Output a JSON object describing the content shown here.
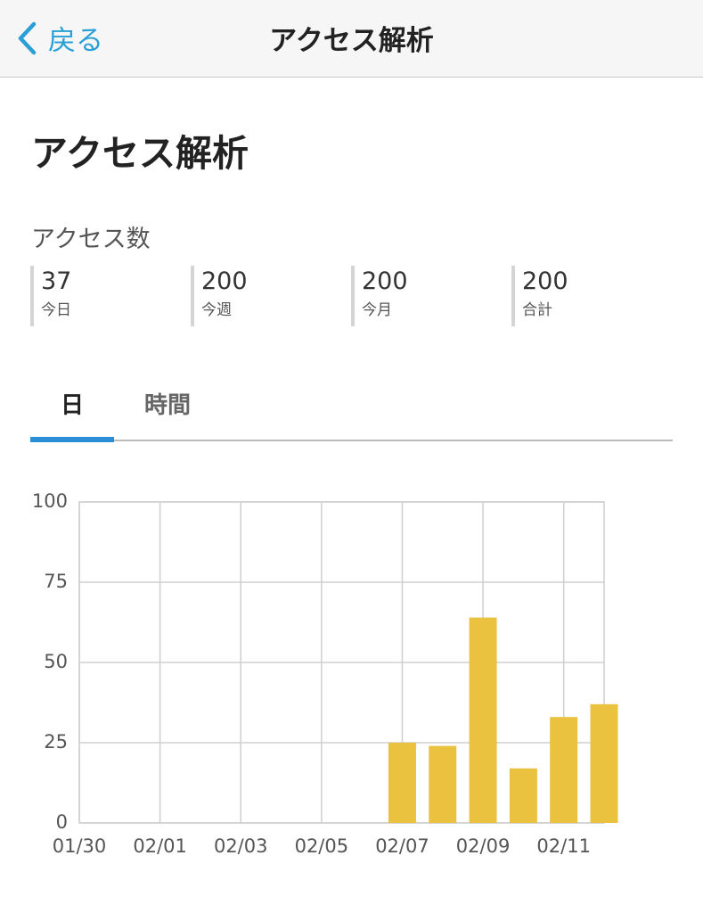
{
  "nav": {
    "back": "戻る",
    "title": "アクセス解析"
  },
  "page_title": "アクセス解析",
  "stats": {
    "heading": "アクセス数",
    "items": [
      {
        "value": "37",
        "label": "今日"
      },
      {
        "value": "200",
        "label": "今週"
      },
      {
        "value": "200",
        "label": "今月"
      },
      {
        "value": "200",
        "label": "合計"
      }
    ]
  },
  "tabs": [
    "日",
    "時間"
  ],
  "chart_data": {
    "type": "bar",
    "categories": [
      "01/30",
      null,
      "02/01",
      null,
      "02/03",
      null,
      "02/05",
      null,
      "02/07",
      null,
      "02/09",
      null,
      "02/11",
      null
    ],
    "values": [
      0,
      0,
      0,
      0,
      0,
      0,
      0,
      0,
      25,
      24,
      64,
      17,
      33,
      37
    ],
    "color": "#ebc140",
    "ylim": [
      0,
      100
    ],
    "yticks": [
      0,
      25,
      50,
      75,
      100
    ],
    "grid": true
  }
}
